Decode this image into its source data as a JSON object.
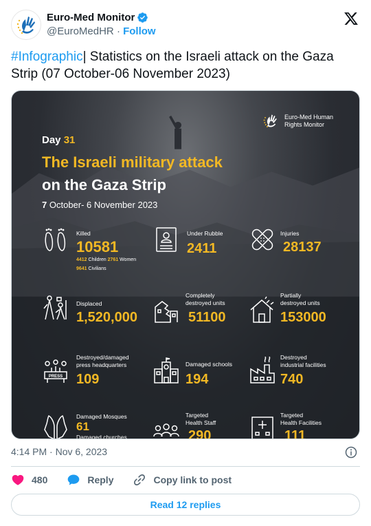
{
  "account": {
    "display_name": "Euro-Med Monitor",
    "handle": "@EuroMedHR",
    "separator": "·",
    "follow_label": "Follow"
  },
  "tweet": {
    "hashtag": "#Infographic",
    "text": "| Statistics on the Israeli attack on the Gaza Strip (07 October-06 November 2023)"
  },
  "infographic": {
    "org_name": "Euro-Med Human\nRights Monitor",
    "day_label": "Day",
    "day_number": "31",
    "title_line1": "The Israeli military attack",
    "title_line2": "on the Gaza Strip",
    "date_range_start": "7",
    "date_range_rest": "October- 6 November 2023",
    "stats": {
      "killed": {
        "label": "Killed",
        "value": "10581",
        "children_value": "4412",
        "children_label": "Children",
        "women_value": "2761",
        "women_label": "Women",
        "civilians_value": "9641",
        "civilians_label": "Civilians"
      },
      "under_rubble": {
        "label": "Under Rubble",
        "value": "2411"
      },
      "injuries": {
        "label": "Injuries",
        "value": "28137"
      },
      "displaced": {
        "label": "Displaced",
        "value": "1,520,000"
      },
      "completely_destroyed": {
        "label": "Completely\ndestroyed units",
        "value": "51100"
      },
      "partially_destroyed": {
        "label": "Partially\ndestroyed units",
        "value": "153000"
      },
      "press_hq": {
        "label": "Destroyed/damaged\npress headquarters",
        "value": "109",
        "sign": "PRESS"
      },
      "schools": {
        "label": "Damaged schools",
        "value": "194"
      },
      "industrial": {
        "label": "Destroyed\nindustrial facilities",
        "value": "740"
      },
      "mosques": {
        "label": "Damaged Mosques",
        "value": "61",
        "churches_label": "Damaged churches"
      },
      "health_staff": {
        "label": "Targeted\nHealth Staff",
        "value": "290"
      },
      "health_facilities": {
        "label": "Targeted\nHealth Facilities",
        "value": "111"
      }
    }
  },
  "meta": {
    "timestamp": "4:14 PM · Nov 6, 2023"
  },
  "actions": {
    "likes_count": "480",
    "reply_label": "Reply",
    "copy_label": "Copy link to post"
  },
  "read_replies_label": "Read 12 replies",
  "colors": {
    "accent": "#1d9bf0",
    "gold": "#f2b824",
    "like": "#f91880"
  }
}
